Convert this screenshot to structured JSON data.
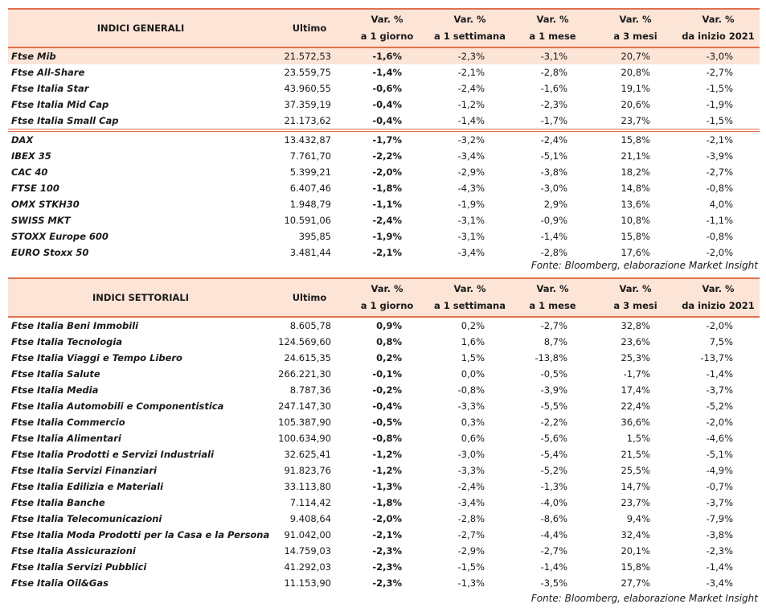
{
  "table_generali": {
    "header": [
      "INDICI GENERALI",
      "Ultimo",
      [
        "Var. %",
        "a 1 giorno"
      ],
      [
        "Var. %",
        "a 1 settimana"
      ],
      [
        "Var. %",
        "a 1 mese"
      ],
      [
        "Var. %",
        "a 3 mesi"
      ],
      [
        "Var. %",
        "da inizio 2021"
      ]
    ],
    "rows": [
      [
        "Ftse Mib",
        "21.572,53",
        "-1,6%",
        "-2,3%",
        "-3,1%",
        "20,7%",
        "-3,0%"
      ],
      [
        "Ftse All-Share",
        "23.559,75",
        "-1,4%",
        "-2,1%",
        "-2,8%",
        "20,8%",
        "-2,7%"
      ],
      [
        "Ftse Italia Star",
        "43.960,55",
        "-0,6%",
        "-2,4%",
        "-1,6%",
        "19,1%",
        "-1,5%"
      ],
      [
        "Ftse Italia Mid Cap",
        "37.359,19",
        "-0,4%",
        "-1,2%",
        "-2,3%",
        "20,6%",
        "-1,9%"
      ],
      [
        "Ftse Italia Small Cap",
        "21.173,62",
        "-0,4%",
        "-1,4%",
        "-1,7%",
        "23,7%",
        "-1,5%"
      ],
      [
        "DAX",
        "13.432,87",
        "-1,7%",
        "-3,2%",
        "-2,4%",
        "15,8%",
        "-2,1%"
      ],
      [
        "IBEX 35",
        "7.761,70",
        "-2,2%",
        "-3,4%",
        "-5,1%",
        "21,1%",
        "-3,9%"
      ],
      [
        "CAC 40",
        "5.399,21",
        "-2,0%",
        "-2,9%",
        "-3,8%",
        "18,2%",
        "-2,7%"
      ],
      [
        "FTSE 100",
        "6.407,46",
        "-1,8%",
        "-4,3%",
        "-3,0%",
        "14,8%",
        "-0,8%"
      ],
      [
        "OMX STKH30",
        "1.948,79",
        "-1,1%",
        "-1,9%",
        "2,9%",
        "13,6%",
        "4,0%"
      ],
      [
        "SWISS MKT",
        "10.591,06",
        "-2,4%",
        "-3,1%",
        "-0,9%",
        "10,8%",
        "-1,1%"
      ],
      [
        "STOXX Europe 600",
        "395,85",
        "-1,9%",
        "-3,1%",
        "-1,4%",
        "15,8%",
        "-0,8%"
      ],
      [
        "EURO Stoxx 50",
        "3.481,44",
        "-2,1%",
        "-3,4%",
        "-2,8%",
        "17,6%",
        "-2,0%"
      ]
    ],
    "source": "Fonte: Bloomberg, elaborazione Market Insight"
  },
  "table_settoriali": {
    "header": [
      "INDICI SETTORIALI",
      "Ultimo",
      [
        "Var. %",
        "a 1 giorno"
      ],
      [
        "Var. %",
        "a 1 settimana"
      ],
      [
        "Var. %",
        "a 1 mese"
      ],
      [
        "Var. %",
        "a 3 mesi"
      ],
      [
        "Var. %",
        "da inizio 2021"
      ]
    ],
    "rows": [
      [
        "Ftse Italia Beni Immobili",
        "8.605,78",
        "0,9%",
        "0,2%",
        "-2,7%",
        "32,8%",
        "-2,0%"
      ],
      [
        "Ftse Italia Tecnologia",
        "124.569,60",
        "0,8%",
        "1,6%",
        "8,7%",
        "23,6%",
        "7,5%"
      ],
      [
        "Ftse Italia Viaggi e Tempo Libero",
        "24.615,35",
        "0,2%",
        "1,5%",
        "-13,8%",
        "25,3%",
        "-13,7%"
      ],
      [
        "Ftse Italia Salute",
        "266.221,30",
        "-0,1%",
        "0,0%",
        "-0,5%",
        "-1,7%",
        "-1,4%"
      ],
      [
        "Ftse Italia Media",
        "8.787,36",
        "-0,2%",
        "-0,8%",
        "-3,9%",
        "17,4%",
        "-3,7%"
      ],
      [
        "Ftse Italia Automobili e Componentistica",
        "247.147,30",
        "-0,4%",
        "-3,3%",
        "-5,5%",
        "22,4%",
        "-5,2%"
      ],
      [
        "Ftse Italia Commercio",
        "105.387,90",
        "-0,5%",
        "0,3%",
        "-2,2%",
        "36,6%",
        "-2,0%"
      ],
      [
        "Ftse Italia Alimentari",
        "100.634,90",
        "-0,8%",
        "0,6%",
        "-5,6%",
        "1,5%",
        "-4,6%"
      ],
      [
        "Ftse Italia Prodotti e Servizi Industriali",
        "32.625,41",
        "-1,2%",
        "-3,0%",
        "-5,4%",
        "21,5%",
        "-5,1%"
      ],
      [
        "Ftse Italia Servizi Finanziari",
        "91.823,76",
        "-1,2%",
        "-3,3%",
        "-5,2%",
        "25,5%",
        "-4,9%"
      ],
      [
        "Ftse Italia Edilizia e Materiali",
        "33.113,80",
        "-1,3%",
        "-2,4%",
        "-1,3%",
        "14,7%",
        "-0,7%"
      ],
      [
        "Ftse Italia Banche",
        "7.114,42",
        "-1,8%",
        "-3,4%",
        "-4,0%",
        "23,7%",
        "-3,7%"
      ],
      [
        "Ftse Italia Telecomunicazioni",
        "9.408,64",
        "-2,0%",
        "-2,8%",
        "-8,6%",
        "9,4%",
        "-7,9%"
      ],
      [
        "Ftse Italia Moda Prodotti per la Casa e la Persona",
        "91.042,00",
        "-2,1%",
        "-2,7%",
        "-4,4%",
        "32,4%",
        "-3,8%"
      ],
      [
        "Ftse Italia Assicurazioni",
        "14.759,03",
        "-2,3%",
        "-2,9%",
        "-2,7%",
        "20,1%",
        "-2,3%"
      ],
      [
        "Ftse Italia Servizi Pubblici",
        "41.292,03",
        "-2,3%",
        "-1,5%",
        "-1,4%",
        "15,8%",
        "-1,4%"
      ],
      [
        "Ftse Italia Oil&Gas",
        "11.153,90",
        "-2,3%",
        "-1,3%",
        "-3,5%",
        "27,7%",
        "-3,4%"
      ]
    ],
    "source": "Fonte: Bloomberg, elaborazione Market Insight"
  }
}
